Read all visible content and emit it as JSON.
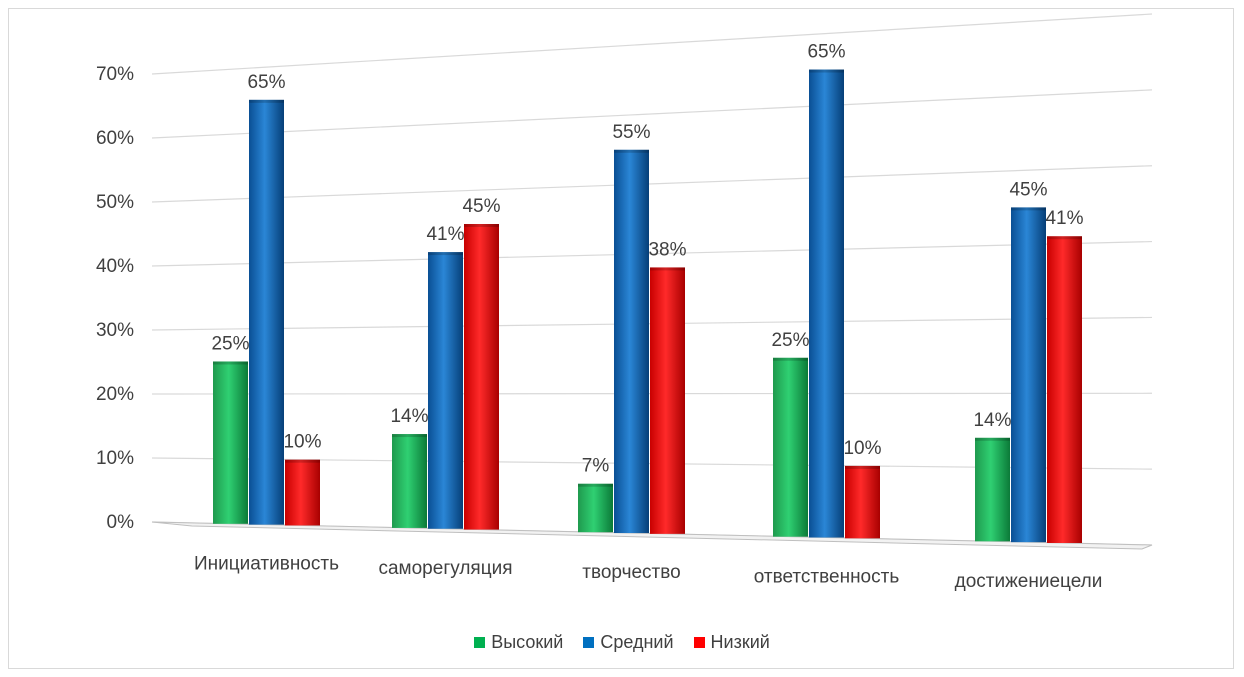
{
  "chart_data": {
    "type": "bar",
    "categories": [
      "Инициативность",
      "саморегуляция",
      "творчество",
      "ответственность",
      "достижениецели"
    ],
    "series": [
      {
        "name": "Высокий",
        "color": "#00b050",
        "values": [
          25,
          14,
          7,
          25,
          14
        ],
        "labels": [
          "25%",
          "14%",
          "7%",
          "25%",
          "14%"
        ]
      },
      {
        "name": "Средний",
        "color": "#0070c0",
        "values": [
          65,
          41,
          55,
          65,
          45
        ],
        "labels": [
          "65%",
          "41%",
          "55%",
          "65%",
          "45%"
        ]
      },
      {
        "name": "Низкий",
        "color": "#ff0000",
        "values": [
          10,
          45,
          38,
          10,
          41
        ],
        "labels": [
          "10%",
          "45%",
          "38%",
          "10%",
          "41%"
        ]
      }
    ],
    "yticks": [
      "0%",
      "10%",
      "20%",
      "30%",
      "40%",
      "50%",
      "60%",
      "70%"
    ],
    "ylim": [
      0,
      70
    ],
    "grid": true,
    "legend_position": "bottom"
  }
}
